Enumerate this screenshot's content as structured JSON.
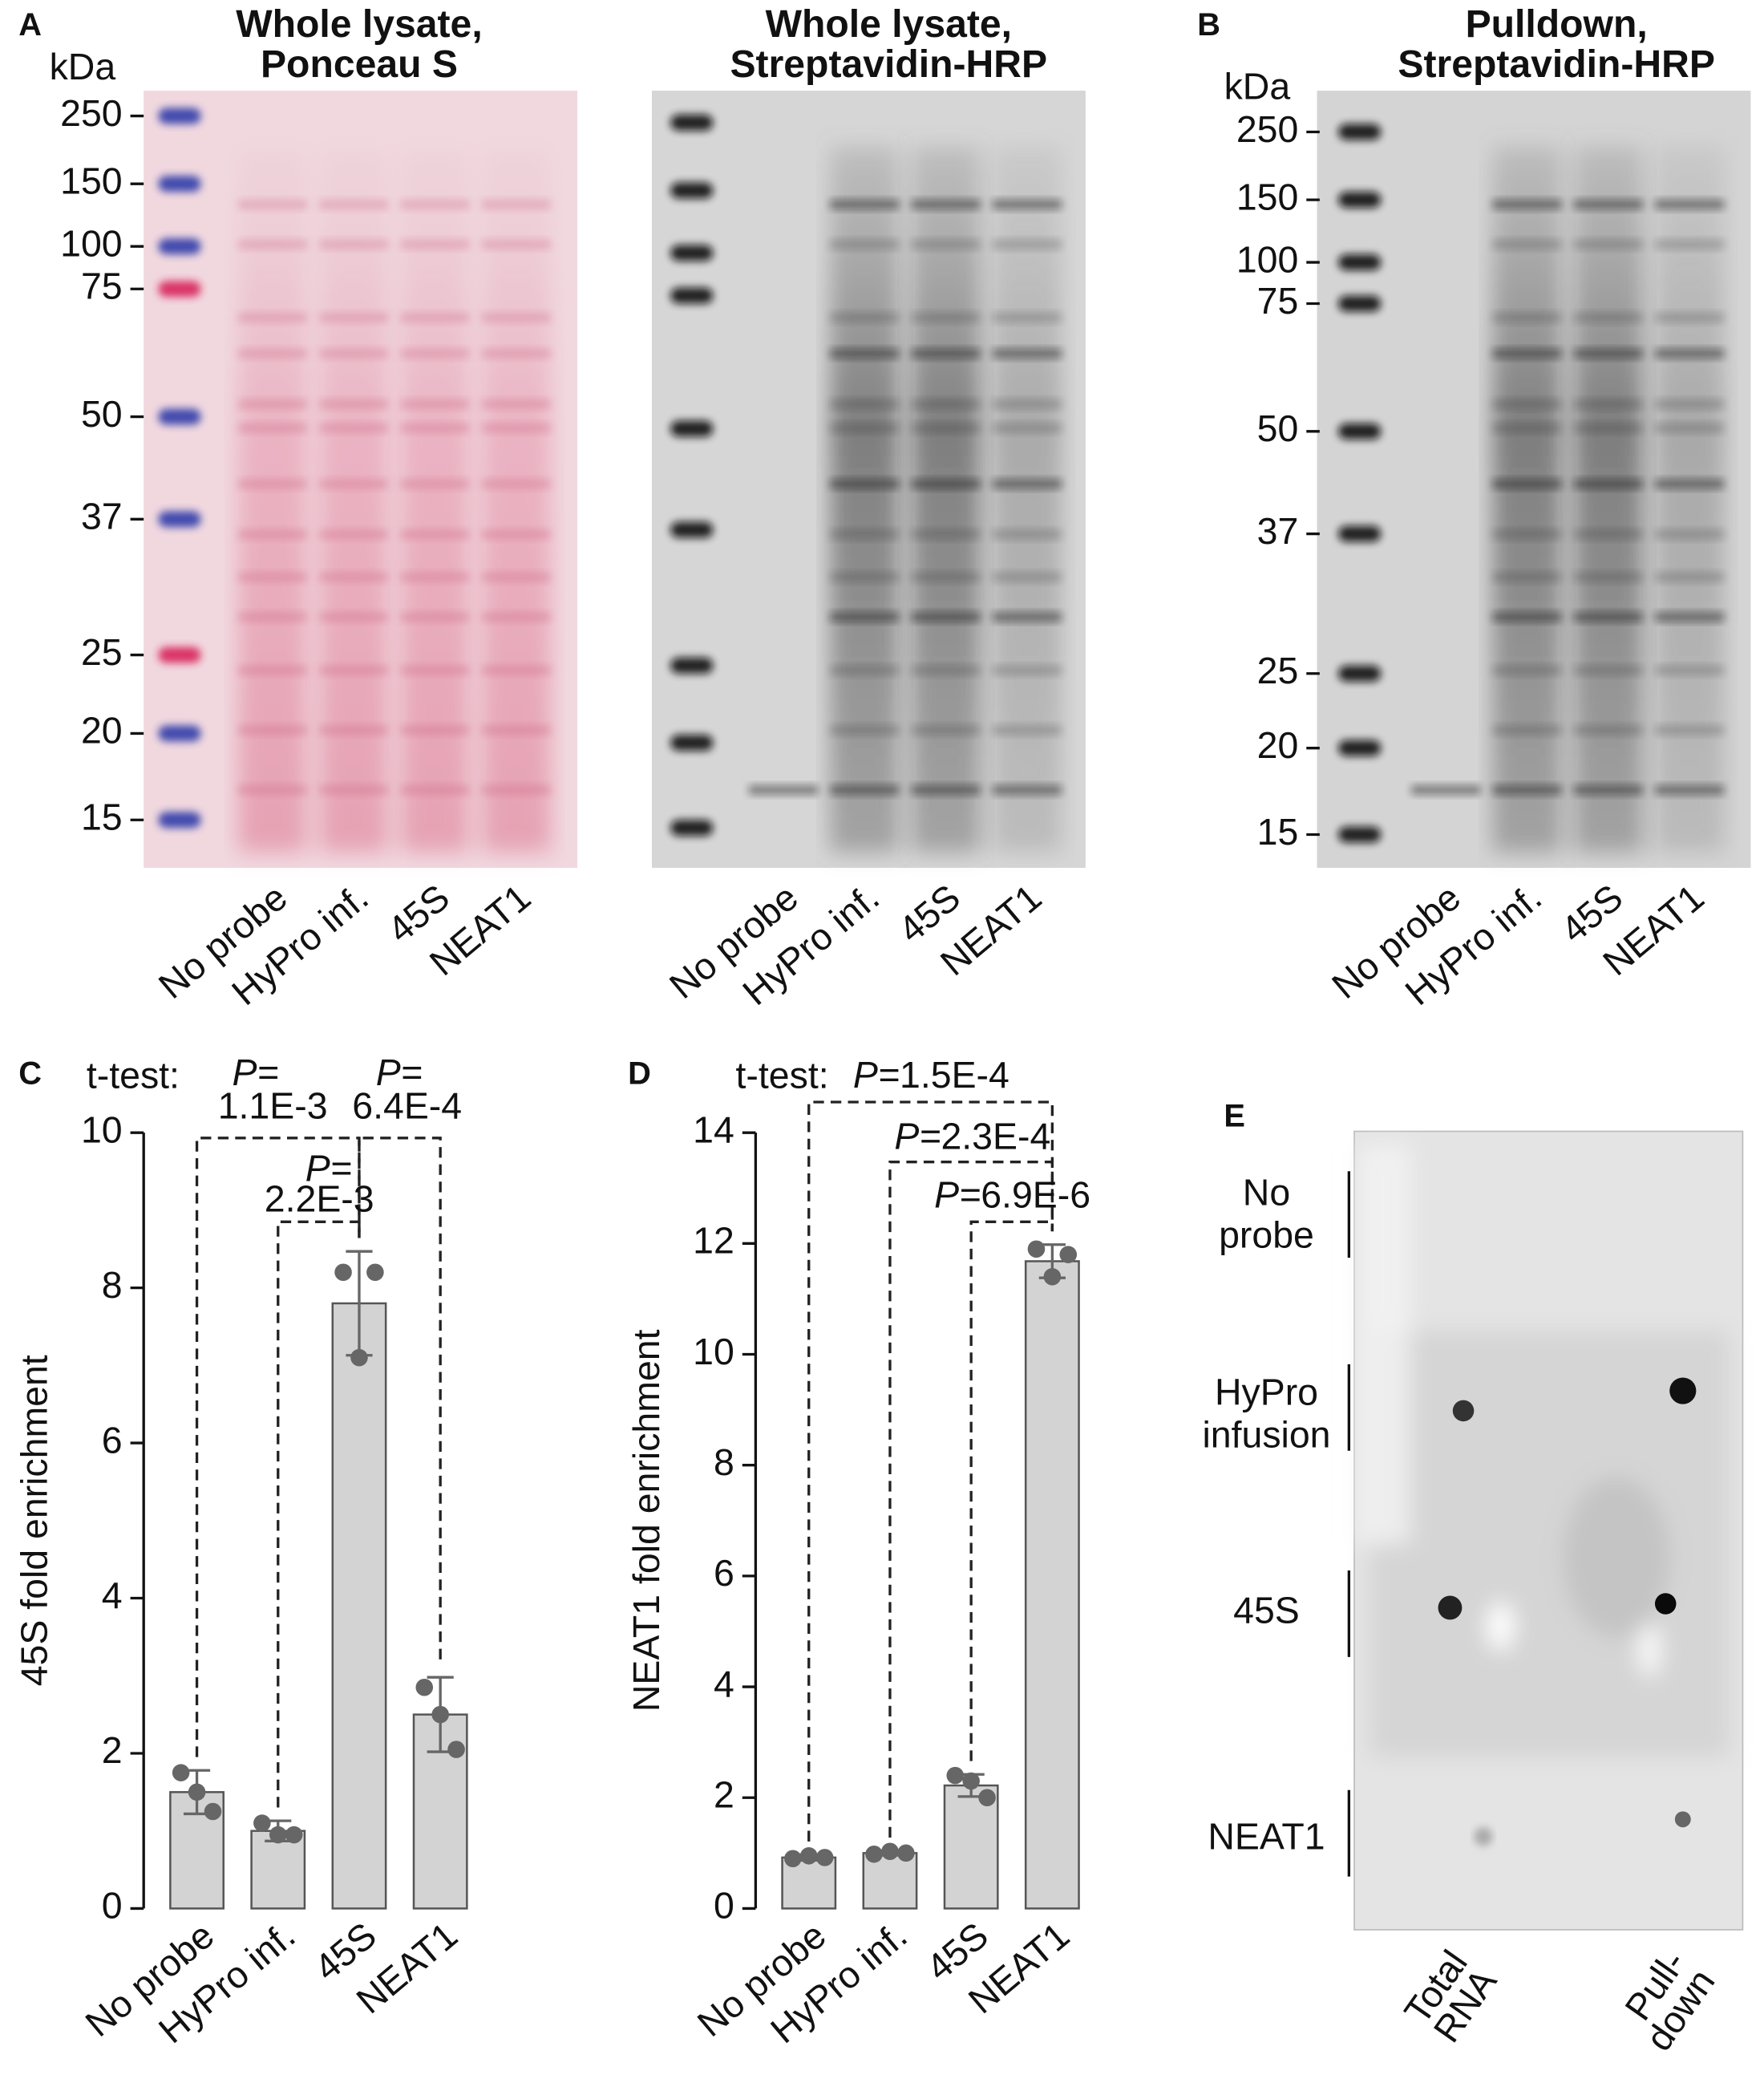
{
  "panel_labels": [
    "A",
    "B",
    "C",
    "D",
    "E"
  ],
  "gels": [
    {
      "title": [
        "Whole lysate,",
        "Ponceau S"
      ],
      "unit": "kDa",
      "markers": [
        250,
        150,
        100,
        75,
        50,
        37,
        25,
        20,
        15
      ],
      "lanes": [
        "No probe",
        "HyPro inf.",
        "45S",
        "NEAT1"
      ]
    },
    {
      "title": [
        "Whole lysate,",
        "Streptavidin-HRP"
      ],
      "lanes": [
        "No probe",
        "HyPro inf.",
        "45S",
        "NEAT1"
      ]
    },
    {
      "title": [
        "Pulldown,",
        "Streptavidin-HRP"
      ],
      "unit": "kDa",
      "markers": [
        250,
        150,
        100,
        75,
        50,
        37,
        25,
        20,
        15
      ],
      "lanes": [
        "No probe",
        "HyPro inf.",
        "45S",
        "NEAT1"
      ]
    }
  ],
  "chart_data": [
    {
      "type": "bar",
      "ylabel": "45S fold enrichment",
      "categories": [
        "No probe",
        "HyPro inf.",
        "45S",
        "NEAT1"
      ],
      "values": [
        1.5,
        1.0,
        7.8,
        2.5
      ],
      "errors": [
        0.28,
        0.13,
        0.67,
        0.48
      ],
      "points": [
        [
          1.75,
          1.25,
          1.5
        ],
        [
          1.1,
          0.95,
          0.95
        ],
        [
          8.2,
          8.2,
          7.1
        ],
        [
          2.85,
          2.05,
          2.5
        ]
      ],
      "color": "#d3d3d3",
      "ylim": [
        0,
        10
      ],
      "yticks": [
        0,
        2,
        4,
        6,
        8,
        10
      ],
      "test_label": "t-test:",
      "p_prefix": "P=",
      "comparisons": [
        {
          "between": [
            0,
            2
          ],
          "p": "1.1E-3"
        },
        {
          "between": [
            2,
            3
          ],
          "p": "6.4E-4"
        },
        {
          "between": [
            1,
            2
          ],
          "p": "2.2E-3"
        }
      ]
    },
    {
      "type": "bar",
      "ylabel": "NEAT1 fold enrichment",
      "categories": [
        "No probe",
        "HyPro inf.",
        "45S",
        "NEAT1"
      ],
      "values": [
        0.92,
        1.0,
        2.22,
        11.68
      ],
      "errors": [
        0.05,
        0.04,
        0.2,
        0.3
      ],
      "points": [
        [
          0.9,
          0.92,
          0.95
        ],
        [
          0.98,
          1.0,
          1.03
        ],
        [
          2.4,
          2.0,
          2.3
        ],
        [
          11.9,
          11.8,
          11.4
        ]
      ],
      "color": "#d3d3d3",
      "ylim": [
        0,
        14
      ],
      "yticks": [
        0,
        2,
        4,
        6,
        8,
        10,
        12,
        14
      ],
      "test_label": "t-test:",
      "p_prefix": "P=",
      "comparisons": [
        {
          "between": [
            0,
            3
          ],
          "p": "1.5E-4"
        },
        {
          "between": [
            1,
            3
          ],
          "p": "2.3E-4"
        },
        {
          "between": [
            2,
            3
          ],
          "p": "6.9E-6"
        }
      ]
    }
  ],
  "dot_blot": {
    "rows": [
      [
        "No",
        "probe"
      ],
      [
        "HyPro",
        "infusion"
      ],
      [
        "45S"
      ],
      [
        "NEAT1"
      ]
    ],
    "columns": [
      [
        "Total",
        "RNA"
      ],
      [
        "Pull-",
        "down"
      ]
    ]
  }
}
